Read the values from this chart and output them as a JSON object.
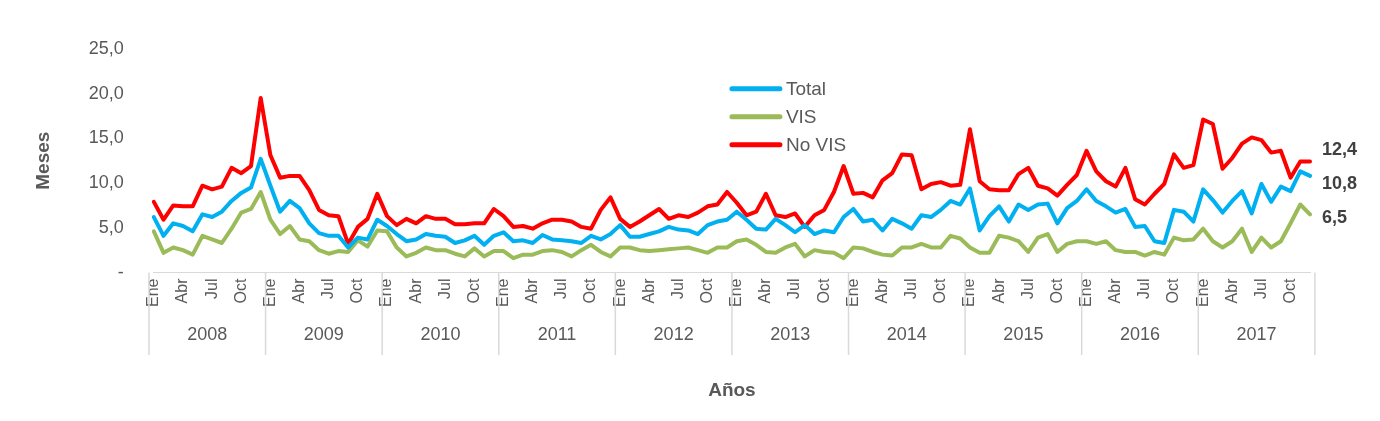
{
  "chart_data": {
    "type": "line",
    "xlabel": "Años",
    "ylabel": "Meses",
    "categories": [
      "Ene",
      null,
      null,
      "Abr",
      null,
      null,
      "Jul",
      null,
      null,
      "Oct",
      null,
      null,
      "Ene",
      null,
      null,
      "Abr",
      null,
      null,
      "Jul",
      null,
      null,
      "Oct",
      null,
      null,
      "Ene",
      null,
      null,
      "Abr",
      null,
      null,
      "Jul",
      null,
      null,
      "Oct",
      null,
      null,
      "Ene",
      null,
      null,
      "Abr",
      null,
      null,
      "Jul",
      null,
      null,
      "Oct",
      null,
      null,
      "Ene",
      null,
      null,
      "Abr",
      null,
      null,
      "Jul",
      null,
      null,
      "Oct",
      null,
      null,
      "Ene",
      null,
      null,
      "Abr",
      null,
      null,
      "Jul",
      null,
      null,
      "Oct",
      null,
      null,
      "Ene",
      null,
      null,
      "Abr",
      null,
      null,
      "Jul",
      null,
      null,
      "Oct",
      null,
      null,
      "Ene",
      null,
      null,
      "Abr",
      null,
      null,
      "Jul",
      null,
      null,
      "Oct",
      null,
      null,
      "Ene",
      null,
      null,
      "Abr",
      null,
      null,
      "Jul",
      null,
      null,
      "Oct",
      null,
      null,
      "Ene",
      null,
      null,
      "Abr",
      null,
      null,
      "Jul",
      null,
      null,
      "Oct",
      null,
      null
    ],
    "annotations": [
      "2008",
      "2009",
      "2010",
      "2011",
      "2012",
      "2013",
      "2014",
      "2015",
      "2016",
      "2017"
    ],
    "series": [
      {
        "name": "Total",
        "color": "#00b0f0",
        "values": [
          6.2,
          4.1,
          5.5,
          5.2,
          4.6,
          6.5,
          6.2,
          6.8,
          8.0,
          8.9,
          9.5,
          12.7,
          9.7,
          6.8,
          8.0,
          7.2,
          5.5,
          4.4,
          4.1,
          4.1,
          2.8,
          3.9,
          3.7,
          5.9,
          5.2,
          4.3,
          3.5,
          3.7,
          4.3,
          4.1,
          4.0,
          3.3,
          3.6,
          4.1,
          3.1,
          4.1,
          4.5,
          3.5,
          3.6,
          3.3,
          4.2,
          3.7,
          3.6,
          3.5,
          3.3,
          4.1,
          3.7,
          4.3,
          5.3,
          4.0,
          4.0,
          4.3,
          4.6,
          5.1,
          4.8,
          4.7,
          4.3,
          5.3,
          5.7,
          5.9,
          6.8,
          5.9,
          4.9,
          4.8,
          6.0,
          5.3,
          4.5,
          5.3,
          4.3,
          4.7,
          4.5,
          6.2,
          7.1,
          5.7,
          5.9,
          4.7,
          6.0,
          5.5,
          4.9,
          6.4,
          6.2,
          7.0,
          8.0,
          7.6,
          9.4,
          4.7,
          6.3,
          7.4,
          5.7,
          7.6,
          7.0,
          7.6,
          7.7,
          5.5,
          7.2,
          8.0,
          9.3,
          8.0,
          7.4,
          6.7,
          7.1,
          5.1,
          5.2,
          3.5,
          3.3,
          7.0,
          6.8,
          5.7,
          9.3,
          8.1,
          6.7,
          8.0,
          9.1,
          6.6,
          9.9,
          7.9,
          9.6,
          9.1,
          11.3,
          10.8
        ],
        "value_labels": [
          null,
          null,
          null,
          null,
          null,
          null,
          null,
          null,
          null,
          null,
          null,
          null,
          null,
          null,
          null,
          null,
          null,
          null,
          null,
          null,
          null,
          null,
          null,
          null,
          null,
          null,
          null,
          null,
          null,
          null,
          null,
          null,
          null,
          null,
          null,
          null,
          null,
          null,
          null,
          null,
          null,
          null,
          null,
          null,
          null,
          null,
          null,
          null,
          null,
          null,
          null,
          null,
          null,
          null,
          null,
          null,
          null,
          null,
          null,
          null,
          null,
          null,
          null,
          null,
          null,
          null,
          null,
          null,
          null,
          null,
          null,
          null,
          null,
          null,
          null,
          null,
          null,
          null,
          null,
          null,
          null,
          null,
          null,
          null,
          null,
          null,
          null,
          null,
          null,
          null,
          null,
          null,
          null,
          null,
          null,
          null,
          null,
          null,
          null,
          null,
          null,
          null,
          null,
          null,
          null,
          null,
          null,
          null,
          null,
          null,
          null,
          null,
          null,
          null,
          null,
          null,
          null,
          null,
          null,
          "10,8"
        ]
      },
      {
        "name": "VIS",
        "color": "#9bbb59",
        "values": [
          4.6,
          2.2,
          2.8,
          2.5,
          2.0,
          4.1,
          3.7,
          3.3,
          4.9,
          6.7,
          7.1,
          9.0,
          5.9,
          4.3,
          5.2,
          3.7,
          3.5,
          2.5,
          2.1,
          2.4,
          2.3,
          3.6,
          2.9,
          4.7,
          4.6,
          2.8,
          1.8,
          2.2,
          2.8,
          2.5,
          2.5,
          2.1,
          1.8,
          2.7,
          1.8,
          2.4,
          2.4,
          1.6,
          2.0,
          2.0,
          2.4,
          2.5,
          2.3,
          1.8,
          2.5,
          3.1,
          2.3,
          1.8,
          2.8,
          2.8,
          2.5,
          2.4,
          2.5,
          2.6,
          2.7,
          2.8,
          2.5,
          2.2,
          2.8,
          2.8,
          3.5,
          3.7,
          3.1,
          2.3,
          2.2,
          2.8,
          3.2,
          1.8,
          2.5,
          2.3,
          2.2,
          1.6,
          2.8,
          2.7,
          2.3,
          2.0,
          1.9,
          2.8,
          2.8,
          3.2,
          2.8,
          2.8,
          4.1,
          3.8,
          2.8,
          2.2,
          2.2,
          4.1,
          3.9,
          3.5,
          2.3,
          3.9,
          4.3,
          2.3,
          3.2,
          3.5,
          3.5,
          3.2,
          3.5,
          2.5,
          2.3,
          2.3,
          1.9,
          2.3,
          2.0,
          3.9,
          3.6,
          3.7,
          4.9,
          3.5,
          2.8,
          3.5,
          4.9,
          2.3,
          3.9,
          2.8,
          3.5,
          5.5,
          7.6,
          6.5
        ],
        "value_labels": [
          null,
          null,
          null,
          null,
          null,
          null,
          null,
          null,
          null,
          null,
          null,
          null,
          null,
          null,
          null,
          null,
          null,
          null,
          null,
          null,
          null,
          null,
          null,
          null,
          null,
          null,
          null,
          null,
          null,
          null,
          null,
          null,
          null,
          null,
          null,
          null,
          null,
          null,
          null,
          null,
          null,
          null,
          null,
          null,
          null,
          null,
          null,
          null,
          null,
          null,
          null,
          null,
          null,
          null,
          null,
          null,
          null,
          null,
          null,
          null,
          null,
          null,
          null,
          null,
          null,
          null,
          null,
          null,
          null,
          null,
          null,
          null,
          null,
          null,
          null,
          null,
          null,
          null,
          null,
          null,
          null,
          null,
          null,
          null,
          null,
          null,
          null,
          null,
          null,
          null,
          null,
          null,
          null,
          null,
          null,
          null,
          null,
          null,
          null,
          null,
          null,
          null,
          null,
          null,
          null,
          null,
          null,
          null,
          null,
          null,
          null,
          null,
          null,
          null,
          null,
          null,
          null,
          null,
          null,
          "6,5"
        ]
      },
      {
        "name": "No VIS",
        "color": "#ff0000",
        "values": [
          7.9,
          5.9,
          7.5,
          7.4,
          7.4,
          9.7,
          9.3,
          9.6,
          11.7,
          11.1,
          11.9,
          19.5,
          13.1,
          10.6,
          10.8,
          10.8,
          9.2,
          7.0,
          6.4,
          6.3,
          3.2,
          5.1,
          6.0,
          8.8,
          6.3,
          5.3,
          6.0,
          5.5,
          6.3,
          6.0,
          6.0,
          5.4,
          5.4,
          5.5,
          5.5,
          7.1,
          6.3,
          5.1,
          5.2,
          4.9,
          5.5,
          5.9,
          5.9,
          5.7,
          5.1,
          4.9,
          7.0,
          8.4,
          6.0,
          5.1,
          5.7,
          6.4,
          7.1,
          6.0,
          6.4,
          6.2,
          6.7,
          7.4,
          7.6,
          9.0,
          7.8,
          6.4,
          6.8,
          8.8,
          6.4,
          6.2,
          6.6,
          5.1,
          6.4,
          7.0,
          9.0,
          11.9,
          8.8,
          8.9,
          8.4,
          10.3,
          11.1,
          13.2,
          13.1,
          9.3,
          9.9,
          10.1,
          9.7,
          9.8,
          16.0,
          10.2,
          9.3,
          9.2,
          9.2,
          11.0,
          11.7,
          9.7,
          9.4,
          8.6,
          9.8,
          10.9,
          13.6,
          11.3,
          10.2,
          9.6,
          11.7,
          8.2,
          7.6,
          8.8,
          9.9,
          13.2,
          11.7,
          12.0,
          17.1,
          16.6,
          11.6,
          12.8,
          14.4,
          15.1,
          14.8,
          13.4,
          13.6,
          10.6,
          12.4,
          12.4
        ],
        "value_labels": [
          null,
          null,
          null,
          null,
          null,
          null,
          null,
          null,
          null,
          null,
          null,
          null,
          null,
          null,
          null,
          null,
          null,
          null,
          null,
          null,
          null,
          null,
          null,
          null,
          null,
          null,
          null,
          null,
          null,
          null,
          null,
          null,
          null,
          null,
          null,
          null,
          null,
          null,
          null,
          null,
          null,
          null,
          null,
          null,
          null,
          null,
          null,
          null,
          null,
          null,
          null,
          null,
          null,
          null,
          null,
          null,
          null,
          null,
          null,
          null,
          null,
          null,
          null,
          null,
          null,
          null,
          null,
          null,
          null,
          null,
          null,
          null,
          null,
          null,
          null,
          null,
          null,
          null,
          null,
          null,
          null,
          null,
          null,
          null,
          null,
          null,
          null,
          null,
          null,
          null,
          null,
          null,
          null,
          null,
          null,
          null,
          null,
          null,
          null,
          null,
          null,
          null,
          null,
          null,
          null,
          null,
          null,
          null,
          null,
          null,
          null,
          null,
          null,
          null,
          null,
          null,
          null,
          null,
          null,
          "12,4"
        ]
      }
    ],
    "ylim": [
      0,
      25
    ],
    "yticks": [
      {
        "value": 0,
        "label": "-"
      },
      {
        "value": 5,
        "label": "5,0"
      },
      {
        "value": 10,
        "label": "10,0"
      },
      {
        "value": 15,
        "label": "15,0"
      },
      {
        "value": 20,
        "label": "20,0"
      },
      {
        "value": 25,
        "label": "25,0"
      }
    ],
    "grid": false,
    "legend": "top",
    "marker": "none",
    "line_style": "solid"
  }
}
